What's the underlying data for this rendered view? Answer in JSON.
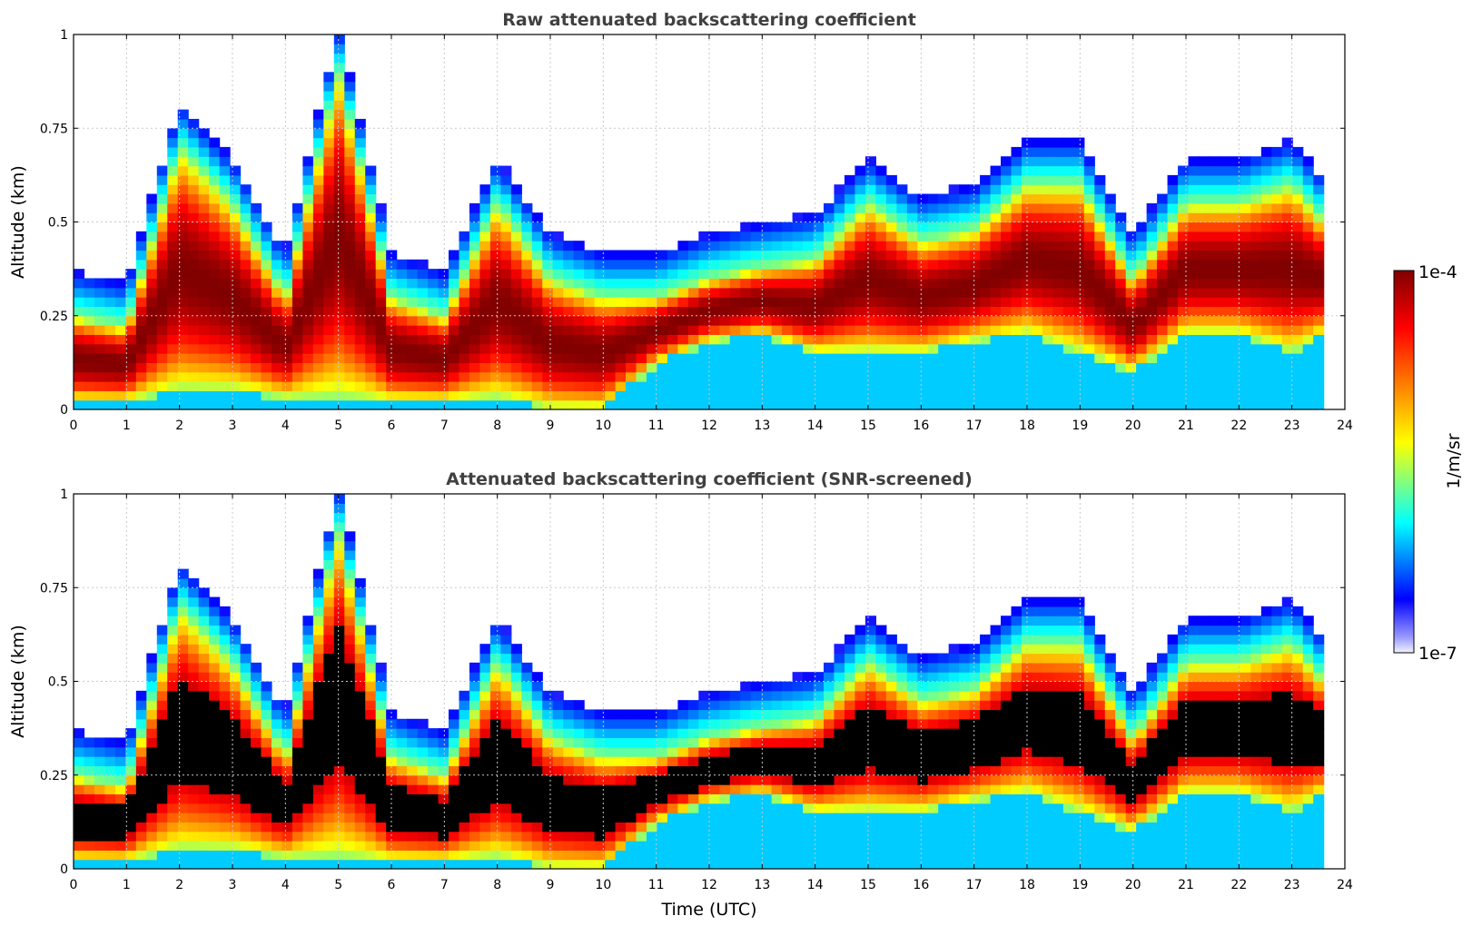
{
  "chart_data": [
    {
      "type": "heatmap",
      "title": "Raw attenuated backscattering coefficient",
      "xlabel": "",
      "ylabel": "Altitude (km)",
      "xlim": [
        0,
        24
      ],
      "ylim": [
        0,
        1
      ],
      "xticks": [
        "0",
        "1",
        "2",
        "3",
        "4",
        "5",
        "6",
        "7",
        "8",
        "9",
        "10",
        "11",
        "12",
        "13",
        "14",
        "15",
        "16",
        "17",
        "18",
        "19",
        "20",
        "21",
        "22",
        "23",
        "24"
      ],
      "yticks": [
        "0",
        "0.25",
        "0.5",
        "0.75",
        "1"
      ],
      "grid": true,
      "screened": false,
      "layer_profile": {
        "time_utc": [
          0,
          1,
          2,
          3,
          4,
          5,
          6,
          7,
          8,
          9,
          10,
          11,
          12,
          13,
          14,
          15,
          16,
          17,
          18,
          19,
          20,
          21,
          22,
          23,
          23.6
        ],
        "layer_top_km": [
          0.25,
          0.22,
          0.7,
          0.55,
          0.3,
          0.9,
          0.3,
          0.25,
          0.55,
          0.35,
          0.3,
          0.3,
          0.35,
          0.38,
          0.4,
          0.55,
          0.45,
          0.48,
          0.6,
          0.6,
          0.35,
          0.55,
          0.55,
          0.6,
          0.5
        ],
        "layer_bottom_km": [
          0.02,
          0.02,
          0.05,
          0.05,
          0.03,
          0.03,
          0.02,
          0.02,
          0.03,
          0.0,
          0.0,
          0.12,
          0.18,
          0.2,
          0.15,
          0.15,
          0.15,
          0.18,
          0.2,
          0.15,
          0.1,
          0.2,
          0.2,
          0.15,
          0.2
        ]
      }
    },
    {
      "type": "heatmap",
      "title": "Attenuated backscattering coefficient (SNR-screened)",
      "xlabel": "Time (UTC)",
      "ylabel": "Altitude (km)",
      "xlim": [
        0,
        24
      ],
      "ylim": [
        0,
        1
      ],
      "xticks": [
        "0",
        "1",
        "2",
        "3",
        "4",
        "5",
        "6",
        "7",
        "8",
        "9",
        "10",
        "11",
        "12",
        "13",
        "14",
        "15",
        "16",
        "17",
        "18",
        "19",
        "20",
        "21",
        "22",
        "23",
        "24"
      ],
      "yticks": [
        "0",
        "0.25",
        "0.5",
        "0.75",
        "1"
      ],
      "grid": true,
      "screened": true,
      "layer_profile": {
        "time_utc": [
          0,
          1,
          2,
          3,
          4,
          5,
          6,
          7,
          8,
          9,
          10,
          11,
          12,
          13,
          14,
          15,
          16,
          17,
          18,
          19,
          20,
          21,
          22,
          23,
          23.6
        ],
        "layer_top_km": [
          0.25,
          0.22,
          0.7,
          0.55,
          0.3,
          0.9,
          0.3,
          0.25,
          0.55,
          0.35,
          0.3,
          0.3,
          0.35,
          0.38,
          0.4,
          0.55,
          0.45,
          0.48,
          0.6,
          0.6,
          0.35,
          0.55,
          0.55,
          0.6,
          0.5
        ],
        "layer_bottom_km": [
          0.02,
          0.02,
          0.05,
          0.05,
          0.03,
          0.03,
          0.02,
          0.02,
          0.03,
          0.0,
          0.0,
          0.12,
          0.18,
          0.2,
          0.15,
          0.15,
          0.15,
          0.18,
          0.2,
          0.15,
          0.1,
          0.2,
          0.2,
          0.15,
          0.2
        ]
      }
    }
  ],
  "colorbar": {
    "max_label": "1e-4",
    "min_label": "1e-7",
    "unit_label": "1/m/sr",
    "colors": [
      "#f2f2ff",
      "#0000ff",
      "#00ffff",
      "#ffff00",
      "#ff0000",
      "#800000"
    ],
    "screen_color": "#000000"
  }
}
